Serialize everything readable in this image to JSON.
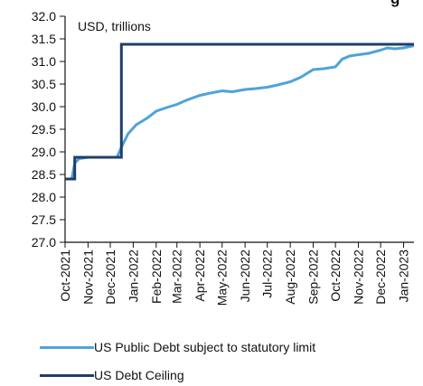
{
  "chart_data": {
    "type": "line",
    "title_fragment": "g",
    "unit_label": "USD, trillions",
    "ylim": [
      27.0,
      32.0
    ],
    "yticks": [
      27.0,
      27.5,
      28.0,
      28.5,
      29.0,
      29.5,
      30.0,
      30.5,
      31.0,
      31.5,
      32.0
    ],
    "x_tick_labels": [
      "Oct-2021",
      "Nov-2021",
      "Dec-2021",
      "Jan-2022",
      "Feb-2022",
      "Mar-2022",
      "Apr-2022",
      "May-2022",
      "Jun-2022",
      "Jul-2022",
      "Aug-2022",
      "Sep-2022",
      "Oct-2022",
      "Nov-2022",
      "Dec-2022",
      "Jan-2023"
    ],
    "x_start": "2021-10-01",
    "x_end": "2023-01-15",
    "series": [
      {
        "name": "US Public Debt subject to statutory limit",
        "color": "#4fa3d9",
        "points": [
          [
            "2021-10-01",
            28.4
          ],
          [
            "2021-10-10",
            28.4
          ],
          [
            "2021-10-14",
            28.75
          ],
          [
            "2021-10-20",
            28.85
          ],
          [
            "2021-11-01",
            28.88
          ],
          [
            "2021-12-10",
            28.88
          ],
          [
            "2021-12-16",
            29.1
          ],
          [
            "2021-12-25",
            29.4
          ],
          [
            "2022-01-05",
            29.6
          ],
          [
            "2022-01-20",
            29.75
          ],
          [
            "2022-02-01",
            29.9
          ],
          [
            "2022-02-15",
            29.98
          ],
          [
            "2022-03-01",
            30.05
          ],
          [
            "2022-03-15",
            30.15
          ],
          [
            "2022-04-01",
            30.25
          ],
          [
            "2022-04-15",
            30.3
          ],
          [
            "2022-05-01",
            30.35
          ],
          [
            "2022-05-15",
            30.33
          ],
          [
            "2022-06-01",
            30.38
          ],
          [
            "2022-06-15",
            30.4
          ],
          [
            "2022-07-01",
            30.43
          ],
          [
            "2022-07-15",
            30.48
          ],
          [
            "2022-08-01",
            30.55
          ],
          [
            "2022-08-15",
            30.65
          ],
          [
            "2022-09-01",
            30.82
          ],
          [
            "2022-09-15",
            30.84
          ],
          [
            "2022-10-01",
            30.88
          ],
          [
            "2022-10-10",
            31.05
          ],
          [
            "2022-10-20",
            31.12
          ],
          [
            "2022-11-01",
            31.15
          ],
          [
            "2022-11-15",
            31.18
          ],
          [
            "2022-12-01",
            31.25
          ],
          [
            "2022-12-10",
            31.3
          ],
          [
            "2022-12-20",
            31.28
          ],
          [
            "2023-01-01",
            31.3
          ],
          [
            "2023-01-15",
            31.35
          ]
        ]
      },
      {
        "name": "US Debt Ceiling",
        "color": "#1f3f6b",
        "points": [
          [
            "2021-10-01",
            28.4
          ],
          [
            "2021-10-14",
            28.4
          ],
          [
            "2021-10-14",
            28.88
          ],
          [
            "2021-12-16",
            28.88
          ],
          [
            "2021-12-16",
            31.38
          ],
          [
            "2023-01-15",
            31.38
          ]
        ]
      }
    ]
  }
}
